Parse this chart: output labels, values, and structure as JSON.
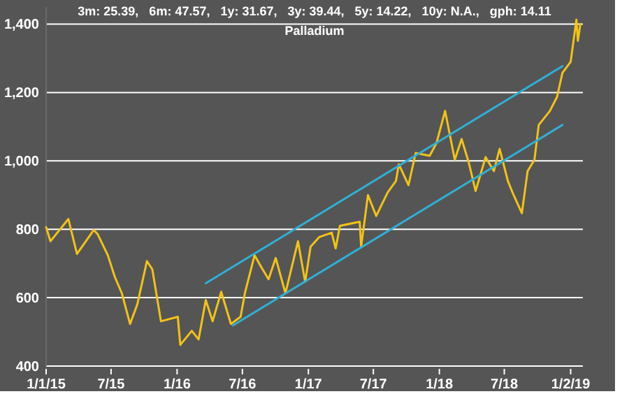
{
  "chart_data": {
    "type": "line",
    "title": "Palladium",
    "subtitle": "3m: 25.39,   6m: 47.57,   1y: 31.67,   3y: 39.44,   5y: 14.22,   10y: N.A.,   gph: 14.11",
    "xlim": [
      "2015-01-01",
      "2019-02-05"
    ],
    "ylim": [
      400,
      1450
    ],
    "xticks": [
      {
        "value": "2015-01-01",
        "label": "1/1/15"
      },
      {
        "value": "2015-07-01",
        "label": "7/15"
      },
      {
        "value": "2016-01-01",
        "label": "1/16"
      },
      {
        "value": "2016-07-01",
        "label": "7/16"
      },
      {
        "value": "2017-01-01",
        "label": "1/17"
      },
      {
        "value": "2017-07-01",
        "label": "7/17"
      },
      {
        "value": "2018-01-01",
        "label": "1/18"
      },
      {
        "value": "2018-07-01",
        "label": "7/18"
      },
      {
        "value": "2019-01-02",
        "label": "1/2/19"
      }
    ],
    "yticks": [
      {
        "value": 400,
        "label": "400"
      },
      {
        "value": 600,
        "label": "600"
      },
      {
        "value": 800,
        "label": "800"
      },
      {
        "value": 1000,
        "label": "1,000"
      },
      {
        "value": 1200,
        "label": "1,200"
      },
      {
        "value": 1400,
        "label": "1,400"
      }
    ],
    "grid": "y",
    "series": [
      {
        "color": "#f2c316",
        "x": [
          "2015-01-01",
          "2015-01-13",
          "2015-03-04",
          "2015-03-28",
          "2015-05-14",
          "2015-05-25",
          "2015-06-22",
          "2015-07-11",
          "2015-07-31",
          "2015-08-23",
          "2015-09-12",
          "2015-10-09",
          "2015-10-24",
          "2015-11-17",
          "2016-01-03",
          "2016-01-10",
          "2016-02-11",
          "2016-03-01",
          "2016-03-21",
          "2016-04-09",
          "2016-05-03",
          "2016-05-30",
          "2016-06-26",
          "2016-07-08",
          "2016-08-04",
          "2016-08-24",
          "2016-09-12",
          "2016-10-02",
          "2016-10-29",
          "2016-12-03",
          "2016-12-23",
          "2017-01-07",
          "2017-01-31",
          "2017-03-07",
          "2017-03-18",
          "2017-03-30",
          "2017-05-24",
          "2017-05-28",
          "2017-06-16",
          "2017-07-09",
          "2017-08-10",
          "2017-09-02",
          "2017-09-10",
          "2017-10-07",
          "2017-10-27",
          "2017-12-05",
          "2017-12-24",
          "2018-01-17",
          "2018-02-13",
          "2018-03-04",
          "2018-03-24",
          "2018-04-12",
          "2018-05-10",
          "2018-06-02",
          "2018-06-18",
          "2018-07-11",
          "2018-07-27",
          "2018-08-19",
          "2018-09-04",
          "2018-09-23",
          "2018-10-05",
          "2018-11-05",
          "2018-11-25",
          "2018-12-10",
          "2019-01-02",
          "2019-01-18",
          "2019-01-22",
          "2019-01-29"
        ],
        "values": [
          806,
          765,
          830,
          728,
          798,
          785,
          724,
          662,
          613,
          523,
          580,
          707,
          683,
          531,
          544,
          462,
          503,
          478,
          593,
          531,
          617,
          523,
          544,
          613,
          724,
          687,
          654,
          716,
          613,
          765,
          646,
          749,
          777,
          790,
          744,
          810,
          822,
          749,
          900,
          839,
          908,
          941,
          990,
          929,
          1023,
          1015,
          1052,
          1146,
          1003,
          1064,
          995,
          912,
          1011,
          970,
          1035,
          941,
          900,
          847,
          970,
          1003,
          1105,
          1146,
          1187,
          1257,
          1290,
          1413,
          1351,
          1400
        ]
      },
      {
        "type": "line",
        "color": "#2fb0d6",
        "x": [
          "2016-03-21",
          "2018-12-10"
        ],
        "values": [
          642,
          1277
        ]
      },
      {
        "type": "line",
        "color": "#2fb0d6",
        "x": [
          "2016-06-05",
          "2018-12-10"
        ],
        "values": [
          519,
          1105
        ]
      }
    ]
  }
}
